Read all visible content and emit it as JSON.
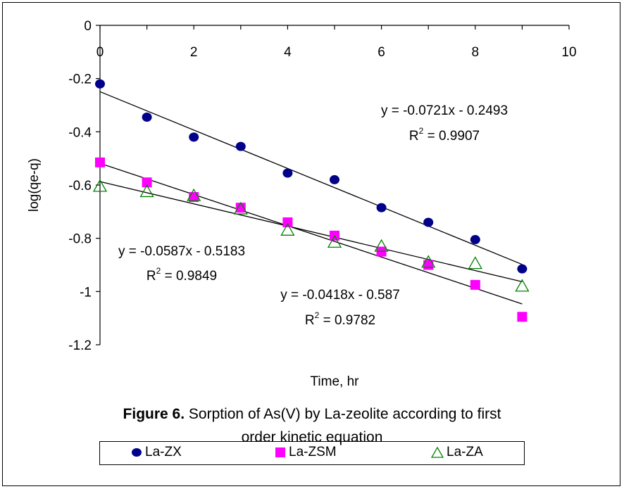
{
  "chart_data": {
    "type": "scatter",
    "xlabel": "Time, hr",
    "ylabel": "log(qe-q)",
    "xlim": [
      0,
      10
    ],
    "ylim": [
      -1.2,
      0
    ],
    "xticks": [
      0,
      2,
      4,
      6,
      8,
      10
    ],
    "yticks": [
      0,
      -0.2,
      -0.4,
      -0.6,
      -0.8,
      -1,
      -1.2
    ],
    "xtick_labels": [
      "0",
      "2",
      "4",
      "6",
      "8",
      "10"
    ],
    "ytick_labels": [
      "0",
      "-0.2",
      "-0.4",
      "-0.6",
      "-0.8",
      "-1",
      "-1.2"
    ],
    "grid": false,
    "legend_position": "bottom",
    "series": [
      {
        "name": "La-ZX",
        "marker": "circle",
        "color": "#00008B",
        "x": [
          0,
          1,
          2,
          3,
          4,
          5,
          6,
          7,
          8,
          9
        ],
        "y": [
          -0.22,
          -0.345,
          -0.42,
          -0.455,
          -0.555,
          -0.58,
          -0.685,
          -0.74,
          -0.805,
          -0.915
        ],
        "trend": {
          "slope": -0.0721,
          "intercept": -0.2493
        }
      },
      {
        "name": "La-ZSM",
        "marker": "square",
        "color": "#FF00FF",
        "x": [
          0,
          1,
          2,
          3,
          4,
          5,
          6,
          7,
          8,
          9
        ],
        "y": [
          -0.515,
          -0.59,
          -0.645,
          -0.685,
          -0.74,
          -0.79,
          -0.85,
          -0.9,
          -0.975,
          -1.095
        ],
        "trend": {
          "slope": -0.0587,
          "intercept": -0.5183
        }
      },
      {
        "name": "La-ZA",
        "marker": "triangle",
        "color": "#008000",
        "x": [
          0,
          1,
          2,
          3,
          4,
          5,
          6,
          7,
          8,
          9
        ],
        "y": [
          -0.605,
          -0.625,
          -0.64,
          -0.69,
          -0.77,
          -0.815,
          -0.83,
          -0.89,
          -0.895,
          -0.98
        ],
        "trend": {
          "slope": -0.0418,
          "intercept": -0.587
        }
      }
    ],
    "annotations": [
      {
        "eq": "y = -0.0721x - 0.2493",
        "r_base": "R",
        "r_sup": "2",
        "r_val": " = 0.9907"
      },
      {
        "eq": "y = -0.0587x - 0.5183",
        "r_base": "R",
        "r_sup": "2",
        "r_val": " = 0.9849"
      },
      {
        "eq": "y = -0.0418x - 0.587",
        "r_base": "R",
        "r_sup": "2",
        "r_val": " = 0.9782"
      }
    ]
  },
  "caption": {
    "label": "Figure 6.",
    "text": " Sorption of As(V) by La-zeolite according to first",
    "line2": "order kinetic equation"
  }
}
